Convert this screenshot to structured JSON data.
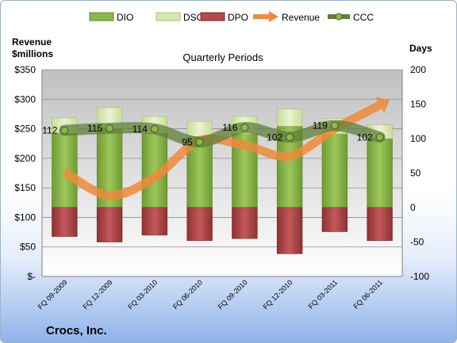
{
  "chart_data": {
    "type": "bar",
    "title": "Quarterly Periods",
    "company": "Crocs, Inc.",
    "left_axis_label": [
      "Revenue",
      "$millions"
    ],
    "right_axis_label": "Days",
    "categories": [
      "FQ 09-2009",
      "FQ 12-2009",
      "FQ 03-2010",
      "FQ 06-2010",
      "FQ 09-2010",
      "FQ 12-2010",
      "FQ 03-2011",
      "FQ 06-2011"
    ],
    "left_ticks": [
      "$350",
      "$300",
      "$250",
      "$200",
      "$150",
      "$100",
      "$50",
      "$-"
    ],
    "right_ticks": [
      "200",
      "150",
      "100",
      "50",
      "0",
      "-50",
      "-100"
    ],
    "left_ylim": [
      0,
      350
    ],
    "right_ylim": [
      -100,
      200
    ],
    "legend": [
      "DIO",
      "DSO",
      "DPO",
      "Revenue",
      "CCC"
    ],
    "colors": {
      "DIO": "#8db84a",
      "DSO": "#d7e7b0",
      "DPO": "#b3494b",
      "Revenue": "#ee8a3a",
      "CCC": "#5f7f3a"
    },
    "series": [
      {
        "name": "DIO",
        "axis": "right",
        "values": [
          108,
          115,
          108,
          103,
          107,
          118,
          107,
          100
        ]
      },
      {
        "name": "DSO",
        "axis": "right",
        "values": [
          22,
          30,
          24,
          22,
          25,
          25,
          22,
          20
        ]
      },
      {
        "name": "DPO",
        "axis": "right",
        "values": [
          -42,
          -50,
          -40,
          -48,
          -45,
          -67,
          -35,
          -48
        ]
      },
      {
        "name": "Revenue",
        "axis": "left",
        "values": [
          177,
          137,
          168,
          230,
          222,
          204,
          250,
          290
        ]
      },
      {
        "name": "CCC",
        "axis": "right",
        "values": [
          112,
          115,
          114,
          95,
          116,
          102,
          119,
          102
        ],
        "labels": [
          "112",
          "115",
          "114",
          "95",
          "116",
          "102",
          "119",
          "102"
        ]
      }
    ],
    "grid": true,
    "legend_position": "top"
  }
}
